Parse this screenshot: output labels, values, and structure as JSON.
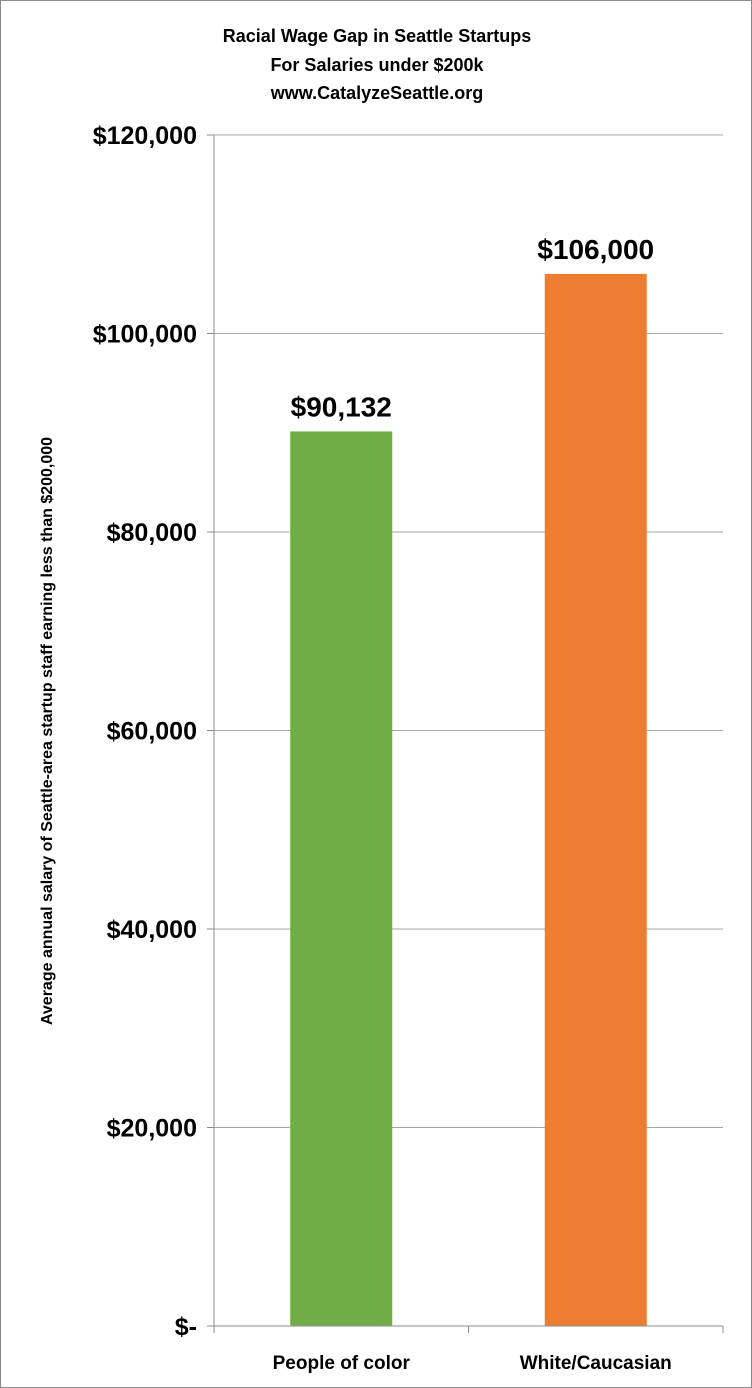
{
  "chart_data": {
    "type": "bar",
    "title_lines": [
      "Racial Wage Gap in Seattle Startups",
      "For Salaries under $200k",
      "www.CatalyzeSeattle.org"
    ],
    "ylabel": "Average annual salary of Seattle-area startup staff earning less than $200,000",
    "xlabel": "",
    "categories": [
      "People of color",
      "White/Caucasian"
    ],
    "values": [
      90132,
      106000
    ],
    "data_labels": [
      "$90,132",
      "$106,000"
    ],
    "colors": [
      "#70ad47",
      "#ed7d31"
    ],
    "ylim": [
      0,
      120000
    ],
    "yticks": [
      0,
      20000,
      40000,
      60000,
      80000,
      100000,
      120000
    ],
    "ytick_labels": [
      "$-",
      "$20,000",
      "$40,000",
      "$60,000",
      "$80,000",
      "$100,000",
      "$120,000"
    ],
    "grid": true,
    "legend": "none"
  }
}
